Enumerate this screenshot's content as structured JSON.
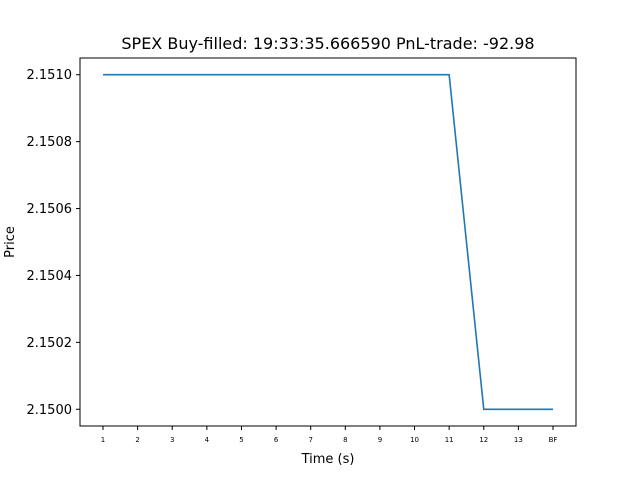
{
  "chart_data": {
    "type": "line",
    "title": "SPEX  Buy-filled:  19:33:35.666590  PnL-trade:  -92.98",
    "xlabel": "Time (s)",
    "ylabel": "Price",
    "categories": [
      "1",
      "2",
      "3",
      "4",
      "5",
      "6",
      "7",
      "8",
      "9",
      "10",
      "11",
      "12",
      "13",
      "BF"
    ],
    "series": [
      {
        "values": [
          2.151,
          2.151,
          2.151,
          2.151,
          2.151,
          2.151,
          2.151,
          2.151,
          2.151,
          2.151,
          2.151,
          2.15,
          2.15,
          2.15
        ],
        "color": "#1f77b4"
      }
    ],
    "yticks": [
      "2.1500",
      "2.1502",
      "2.1504",
      "2.1506",
      "2.1508",
      "2.1510"
    ],
    "ytick_values": [
      2.15,
      2.1502,
      2.1504,
      2.1506,
      2.1508,
      2.151
    ],
    "ylim": [
      2.14995,
      2.15105
    ],
    "grid": false,
    "legend": "none"
  }
}
